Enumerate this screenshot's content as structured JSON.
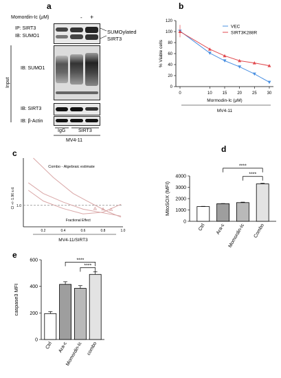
{
  "panels": {
    "a": "a",
    "b": "b",
    "c": "c",
    "d": "d",
    "e": "e"
  },
  "panel_a": {
    "treatment_label": "Momordin-Ic (μM)",
    "minus": "-",
    "plus": "+",
    "ip_line1": "IP: SIRT3",
    "ip_line2": "IB: SUMO1",
    "sumo_line1": "SUMOylated",
    "sumo_line2": "SIRT3",
    "input_label": "Input",
    "ib_sumo1": "IB: SUMO1",
    "ib_sirt3": "IB: SIRT3",
    "ib_actin": "IB: β-Actin",
    "lane_igg": "IgG",
    "lane_sirt3": "SIRT3",
    "cell_line": "MV4-11"
  },
  "chart_data": [
    {
      "type": "line",
      "panel": "b",
      "x": [
        0,
        10,
        15,
        20,
        25,
        30
      ],
      "series": [
        {
          "name": "VEC",
          "color": "#4a90e2",
          "values": [
            101,
            61,
            47,
            36,
            23,
            8
          ]
        },
        {
          "name": "SIRT3K288R",
          "color": "#e0474c",
          "values": [
            100,
            68,
            56,
            47,
            43,
            38
          ]
        }
      ],
      "xlabel": "Mormodin-Ic (μM)",
      "ylabel": "% Viable cells",
      "ylim": [
        0,
        120
      ],
      "yticks": [
        "0",
        "20",
        "40",
        "60",
        "80",
        "100",
        "120"
      ],
      "xticks": [
        "0",
        "10",
        "15",
        "20",
        "25",
        "30"
      ],
      "legend": "top-right",
      "footer": "MV4-11"
    },
    {
      "type": "line",
      "panel": "c",
      "title": "Combo - Algebraic estimate",
      "ylabel": "CI +/- 1.96 s.d.",
      "xlabel": "Fractional Effect",
      "ytick": "1.0",
      "xticks": [
        "0.2",
        "0.4",
        "0.6",
        "0.8",
        "1.0"
      ],
      "xlim": [
        0,
        1
      ],
      "footer": "MV4-11/SIRT3",
      "curves": {
        "estimate": [
          [
            0.05,
            2.05
          ],
          [
            0.2,
            1.55
          ],
          [
            0.4,
            1.15
          ],
          [
            0.6,
            0.82
          ],
          [
            0.8,
            0.65
          ],
          [
            0.98,
            0.5
          ]
        ],
        "upper": [
          [
            0.1,
            3.2
          ],
          [
            0.3,
            2.3
          ],
          [
            0.5,
            1.55
          ],
          [
            0.7,
            1.05
          ],
          [
            0.85,
            0.7
          ],
          [
            0.98,
            0.45
          ]
        ],
        "lower": [
          [
            0.05,
            1.7
          ],
          [
            0.2,
            1.2
          ],
          [
            0.4,
            0.85
          ],
          [
            0.6,
            0.6
          ],
          [
            0.8,
            0.68
          ],
          [
            0.98,
            1.05
          ]
        ]
      },
      "points": [
        [
          0.72,
          0.85
        ],
        [
          0.8,
          0.82
        ],
        [
          0.88,
          0.8
        ]
      ]
    },
    {
      "type": "bar",
      "panel": "d",
      "categories": [
        "Ctrl",
        "Ara-c",
        "Momordin-Ic",
        "Combo"
      ],
      "values": [
        1300,
        1550,
        1650,
        3300
      ],
      "errors": [
        20,
        20,
        40,
        50
      ],
      "colors": [
        "#ffffff",
        "#9e9e9e",
        "#b9b9b9",
        "#e3e3e3"
      ],
      "ylabel": "MitoSOX (MFI)",
      "ylim": [
        0,
        4000
      ],
      "yticks": [
        "0",
        "1000",
        "2000",
        "3000",
        "4000"
      ],
      "significance": "****"
    },
    {
      "type": "bar",
      "panel": "e",
      "categories": [
        "Ctrl",
        "Ara-c",
        "Momordin-Ic",
        "combo"
      ],
      "values": [
        195,
        415,
        385,
        490
      ],
      "errors": [
        15,
        20,
        20,
        20
      ],
      "colors": [
        "#ffffff",
        "#9e9e9e",
        "#b9b9b9",
        "#e3e3e3"
      ],
      "ylabel": "caspase3 MFI",
      "ylim": [
        0,
        600
      ],
      "yticks": [
        "0",
        "200",
        "400",
        "600"
      ],
      "significance": "****"
    }
  ]
}
